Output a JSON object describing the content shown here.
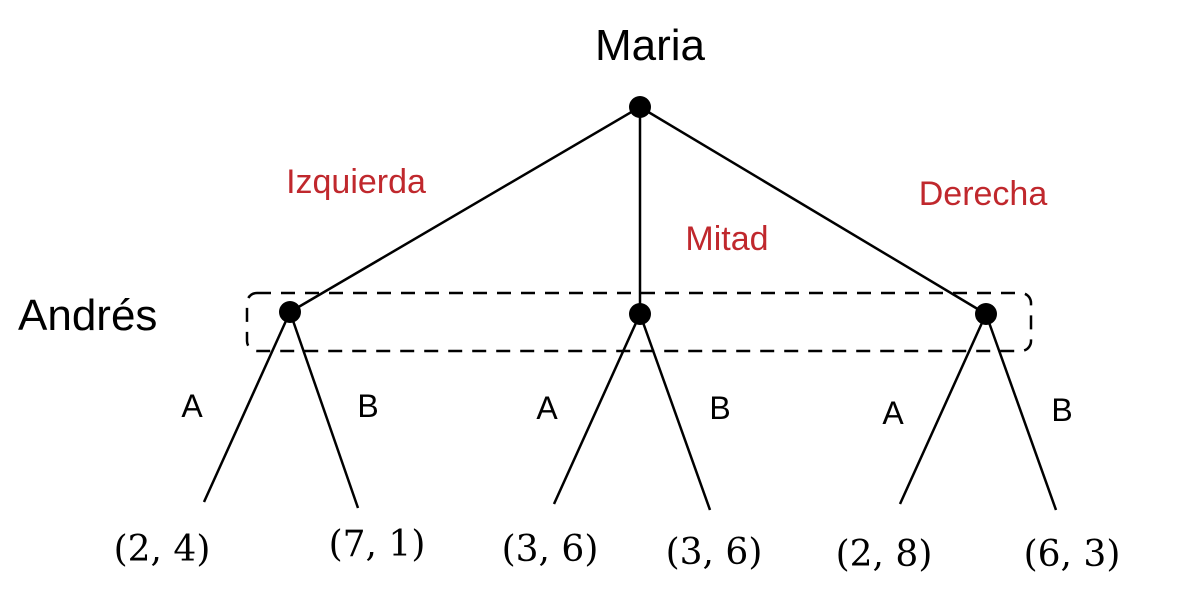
{
  "players": {
    "first": "Maria",
    "second": "Andrés"
  },
  "moves": {
    "left": "Izquierda",
    "middle": "Mitad",
    "right": "Derecha"
  },
  "actions": {
    "left_a": "A",
    "left_b": "B",
    "middle_a": "A",
    "middle_b": "B",
    "right_a": "A",
    "right_b": "B"
  },
  "payoffs": {
    "left_a": "(2, 4)",
    "left_b": "(7, 1)",
    "middle_a": "(3, 6)",
    "middle_b": "(3, 6)",
    "right_a": "(2, 8)",
    "right_b": "(6, 3)"
  },
  "colors": {
    "move_label": "#c0282d",
    "lines": "#000000"
  }
}
